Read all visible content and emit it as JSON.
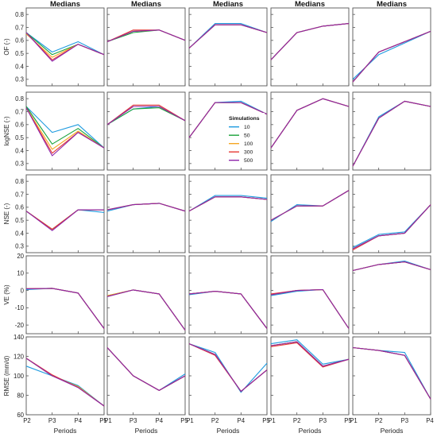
{
  "chart_data": {
    "type": "line",
    "columns": [
      {
        "title": "Medians",
        "x": [
          "P2",
          "P3",
          "P4",
          "P5"
        ]
      },
      {
        "title": "Medians",
        "x": [
          "P1",
          "P3",
          "P4",
          "P5"
        ]
      },
      {
        "title": "Medians",
        "x": [
          "P1",
          "P2",
          "P4",
          "P5"
        ]
      },
      {
        "title": "Medians",
        "x": [
          "P1",
          "P2",
          "P3",
          "P5"
        ]
      },
      {
        "title": "Medians",
        "x": [
          "P1",
          "P2",
          "P3",
          "P4"
        ]
      }
    ],
    "xlabel": "Periods",
    "rows": [
      {
        "ylabel": "OF (-)",
        "ylim": [
          0.25,
          0.85
        ],
        "yticks": [
          0.3,
          0.4,
          0.5,
          0.6,
          0.7,
          0.8
        ]
      },
      {
        "ylabel": "logNSE (-)",
        "ylim": [
          0.25,
          0.85
        ],
        "yticks": [
          0.3,
          0.4,
          0.5,
          0.6,
          0.7,
          0.8
        ]
      },
      {
        "ylabel": "NSE (-)",
        "ylim": [
          0.25,
          0.85
        ],
        "yticks": [
          0.3,
          0.4,
          0.5,
          0.6,
          0.7,
          0.8
        ]
      },
      {
        "ylabel": "VE (%)",
        "ylim": [
          -25,
          20
        ],
        "yticks": [
          -20,
          -10,
          0,
          10,
          20
        ]
      },
      {
        "ylabel": "RMSE (mm/d)",
        "ylim": [
          60,
          140
        ],
        "yticks": [
          60,
          80,
          100,
          120,
          140
        ]
      }
    ],
    "legend": {
      "title": "Simulations",
      "location": "row 2, column 3",
      "entries": [
        "10",
        "50",
        "100",
        "300",
        "500"
      ],
      "colors": [
        "#1f9be0",
        "#18a23a",
        "#f5a623",
        "#e53935",
        "#8e24aa"
      ]
    },
    "panels": [
      [
        {
          "series": [
            [
              0.66,
              0.51,
              0.59,
              0.49
            ],
            [
              0.66,
              0.49,
              0.57,
              0.49
            ],
            [
              0.65,
              0.47,
              0.57,
              0.49
            ],
            [
              0.66,
              0.45,
              0.57,
              0.49
            ],
            [
              0.66,
              0.44,
              0.57,
              0.49
            ]
          ]
        },
        {
          "series": [
            [
              0.59,
              0.67,
              0.68,
              0.6
            ],
            [
              0.59,
              0.66,
              0.68,
              0.6
            ],
            [
              0.59,
              0.67,
              0.68,
              0.6
            ],
            [
              0.59,
              0.68,
              0.68,
              0.6
            ],
            [
              0.59,
              0.67,
              0.68,
              0.6
            ]
          ]
        },
        {
          "series": [
            [
              0.54,
              0.73,
              0.73,
              0.66
            ],
            [
              0.54,
              0.72,
              0.72,
              0.66
            ],
            [
              0.54,
              0.72,
              0.72,
              0.66
            ],
            [
              0.54,
              0.72,
              0.72,
              0.66
            ],
            [
              0.54,
              0.72,
              0.72,
              0.66
            ]
          ]
        },
        {
          "series": [
            [
              0.45,
              0.66,
              0.71,
              0.73
            ],
            [
              0.45,
              0.66,
              0.71,
              0.73
            ],
            [
              0.45,
              0.66,
              0.71,
              0.73
            ],
            [
              0.45,
              0.66,
              0.71,
              0.73
            ],
            [
              0.45,
              0.66,
              0.71,
              0.73
            ]
          ]
        },
        {
          "series": [
            [
              0.3,
              0.49,
              0.58,
              0.67
            ],
            [
              0.28,
              0.51,
              0.59,
              0.67
            ],
            [
              0.28,
              0.51,
              0.59,
              0.67
            ],
            [
              0.28,
              0.51,
              0.59,
              0.67
            ],
            [
              0.28,
              0.51,
              0.59,
              0.67
            ]
          ]
        }
      ],
      [
        {
          "series": [
            [
              0.74,
              0.54,
              0.6,
              0.42
            ],
            [
              0.74,
              0.45,
              0.57,
              0.42
            ],
            [
              0.73,
              0.41,
              0.55,
              0.42
            ],
            [
              0.73,
              0.38,
              0.54,
              0.42
            ],
            [
              0.73,
              0.36,
              0.54,
              0.42
            ]
          ]
        },
        {
          "series": [
            [
              0.6,
              0.72,
              0.74,
              0.63
            ],
            [
              0.6,
              0.72,
              0.73,
              0.63
            ],
            [
              0.6,
              0.74,
              0.74,
              0.63
            ],
            [
              0.6,
              0.75,
              0.75,
              0.63
            ],
            [
              0.6,
              0.74,
              0.74,
              0.63
            ]
          ]
        },
        {
          "series": [
            [
              0.5,
              0.77,
              0.78,
              0.68
            ],
            [
              0.5,
              0.77,
              0.77,
              0.68
            ],
            [
              0.5,
              0.77,
              0.77,
              0.68
            ],
            [
              0.5,
              0.77,
              0.77,
              0.68
            ],
            [
              0.5,
              0.77,
              0.77,
              0.68
            ]
          ]
        },
        {
          "series": [
            [
              0.42,
              0.71,
              0.8,
              0.74
            ],
            [
              0.42,
              0.71,
              0.8,
              0.74
            ],
            [
              0.42,
              0.71,
              0.8,
              0.74
            ],
            [
              0.42,
              0.71,
              0.8,
              0.74
            ],
            [
              0.42,
              0.71,
              0.8,
              0.74
            ]
          ]
        },
        {
          "series": [
            [
              0.28,
              0.66,
              0.78,
              0.74
            ],
            [
              0.28,
              0.65,
              0.78,
              0.74
            ],
            [
              0.28,
              0.65,
              0.78,
              0.74
            ],
            [
              0.28,
              0.65,
              0.78,
              0.74
            ],
            [
              0.28,
              0.65,
              0.78,
              0.74
            ]
          ]
        }
      ],
      [
        {
          "series": [
            [
              0.57,
              0.43,
              0.58,
              0.56
            ],
            [
              0.57,
              0.43,
              0.58,
              0.58
            ],
            [
              0.57,
              0.43,
              0.58,
              0.58
            ],
            [
              0.57,
              0.43,
              0.58,
              0.58
            ],
            [
              0.57,
              0.42,
              0.58,
              0.58
            ]
          ]
        },
        {
          "series": [
            [
              0.57,
              0.62,
              0.63,
              0.57
            ],
            [
              0.58,
              0.62,
              0.63,
              0.57
            ],
            [
              0.58,
              0.62,
              0.63,
              0.57
            ],
            [
              0.58,
              0.62,
              0.63,
              0.57
            ],
            [
              0.58,
              0.62,
              0.63,
              0.57
            ]
          ]
        },
        {
          "series": [
            [
              0.57,
              0.69,
              0.69,
              0.67
            ],
            [
              0.57,
              0.68,
              0.68,
              0.66
            ],
            [
              0.57,
              0.68,
              0.68,
              0.66
            ],
            [
              0.57,
              0.68,
              0.68,
              0.66
            ],
            [
              0.57,
              0.68,
              0.68,
              0.66
            ]
          ]
        },
        {
          "series": [
            [
              0.49,
              0.62,
              0.61,
              0.73
            ],
            [
              0.5,
              0.61,
              0.61,
              0.73
            ],
            [
              0.5,
              0.61,
              0.61,
              0.73
            ],
            [
              0.5,
              0.61,
              0.61,
              0.73
            ],
            [
              0.5,
              0.61,
              0.61,
              0.73
            ]
          ]
        },
        {
          "series": [
            [
              0.29,
              0.39,
              0.41,
              0.62
            ],
            [
              0.28,
              0.38,
              0.4,
              0.62
            ],
            [
              0.28,
              0.38,
              0.4,
              0.62
            ],
            [
              0.27,
              0.38,
              0.4,
              0.62
            ],
            [
              0.28,
              0.38,
              0.4,
              0.62
            ]
          ]
        }
      ],
      [
        {
          "series": [
            [
              0.5,
              1.2,
              -1.5,
              -22
            ],
            [
              1.0,
              1.2,
              -1.5,
              -22
            ],
            [
              1.0,
              1.2,
              -1.5,
              -22
            ],
            [
              1.0,
              1.2,
              -1.5,
              -22
            ],
            [
              1.0,
              1.2,
              -1.5,
              -22
            ]
          ]
        },
        {
          "series": [
            [
              -3.5,
              0.3,
              -2,
              -23
            ],
            [
              -3,
              0.3,
              -2,
              -23
            ],
            [
              -3,
              0.3,
              -2,
              -23
            ],
            [
              -3.5,
              0.3,
              -2,
              -23
            ],
            [
              -3.5,
              0.3,
              -2,
              -23
            ]
          ]
        },
        {
          "series": [
            [
              -2.5,
              -0.5,
              -2,
              -22
            ],
            [
              -2,
              -0.5,
              -2,
              -22
            ],
            [
              -2,
              -0.5,
              -2,
              -22
            ],
            [
              -2,
              -0.5,
              -2,
              -22
            ],
            [
              -2,
              -0.5,
              -2,
              -22
            ]
          ]
        },
        {
          "series": [
            [
              -3,
              -0.5,
              0.5,
              -22
            ],
            [
              -2.5,
              0,
              0.5,
              -22
            ],
            [
              -2.5,
              0,
              0.5,
              -22
            ],
            [
              -2,
              0,
              0.5,
              -22
            ],
            [
              -2.5,
              0,
              0.5,
              -22
            ]
          ]
        },
        {
          "series": [
            [
              11.5,
              15,
              17,
              12
            ],
            [
              11.5,
              15,
              16.5,
              12
            ],
            [
              11.5,
              15,
              16.5,
              12
            ],
            [
              11.5,
              15,
              16.5,
              12
            ],
            [
              11.5,
              15,
              16.5,
              12
            ]
          ]
        }
      ],
      [
        {
          "series": [
            [
              110,
              100,
              90,
              69
            ],
            [
              118,
              100,
              89,
              69
            ],
            [
              118,
              100,
              89,
              69
            ],
            [
              118,
              101,
              88,
              69
            ],
            [
              118,
              100,
              88,
              69
            ]
          ]
        },
        {
          "series": [
            [
              129,
              100,
              85,
              102
            ],
            [
              129,
              100,
              85,
              100
            ],
            [
              129,
              100,
              85,
              100
            ],
            [
              129,
              100,
              85,
              100
            ],
            [
              129,
              100,
              85,
              100
            ]
          ]
        },
        {
          "series": [
            [
              133,
              124,
              83,
              113
            ],
            [
              133,
              122,
              84,
              106
            ],
            [
              133,
              122,
              84,
              106
            ],
            [
              133,
              121,
              84,
              106
            ],
            [
              133,
              122,
              84,
              106
            ]
          ]
        },
        {
          "series": [
            [
              133,
              137,
              112,
              117
            ],
            [
              131,
              135,
              110,
              117
            ],
            [
              131,
              135,
              110,
              117
            ],
            [
              130,
              134,
              109,
              117
            ],
            [
              131,
              135,
              110,
              117
            ]
          ]
        },
        {
          "series": [
            [
              129,
              126,
              124,
              76
            ],
            [
              129,
              126,
              121,
              76
            ],
            [
              129,
              126,
              121,
              76
            ],
            [
              129,
              126,
              121,
              76
            ],
            [
              129,
              126,
              121,
              76
            ]
          ]
        }
      ]
    ]
  }
}
